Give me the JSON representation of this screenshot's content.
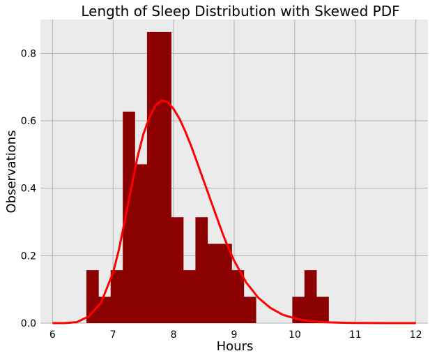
{
  "chart_data": {
    "type": "histogram",
    "title": "Length of Sleep Distribution with Skewed PDF",
    "xlabel": "Hours",
    "ylabel": "Observations",
    "xlim": [
      5.8,
      12.2
    ],
    "ylim": [
      0,
      0.9
    ],
    "xticks": [
      6,
      7,
      8,
      9,
      10,
      11,
      12
    ],
    "yticks": [
      0.0,
      0.2,
      0.4,
      0.6,
      0.8
    ],
    "grid": true,
    "background_color": "#ebebeb",
    "bar_color": "#8b0000",
    "curve_color": "#ff0000",
    "bins": [
      {
        "x0": 6.56,
        "x1": 6.76,
        "value": 0.157
      },
      {
        "x0": 6.76,
        "x1": 6.96,
        "value": 0.078
      },
      {
        "x0": 6.96,
        "x1": 7.16,
        "value": 0.157
      },
      {
        "x0": 7.16,
        "x1": 7.36,
        "value": 0.627
      },
      {
        "x0": 7.36,
        "x1": 7.56,
        "value": 0.471
      },
      {
        "x0": 7.56,
        "x1": 7.76,
        "value": 0.863
      },
      {
        "x0": 7.76,
        "x1": 7.96,
        "value": 0.863
      },
      {
        "x0": 7.96,
        "x1": 8.16,
        "value": 0.314
      },
      {
        "x0": 8.16,
        "x1": 8.36,
        "value": 0.157
      },
      {
        "x0": 8.36,
        "x1": 8.56,
        "value": 0.314
      },
      {
        "x0": 8.56,
        "x1": 8.76,
        "value": 0.235
      },
      {
        "x0": 8.76,
        "x1": 8.96,
        "value": 0.235
      },
      {
        "x0": 8.96,
        "x1": 9.16,
        "value": 0.157
      },
      {
        "x0": 9.16,
        "x1": 9.36,
        "value": 0.078
      },
      {
        "x0": 9.36,
        "x1": 9.56,
        "value": 0.0
      },
      {
        "x0": 9.56,
        "x1": 9.76,
        "value": 0.0
      },
      {
        "x0": 9.76,
        "x1": 9.96,
        "value": 0.0
      },
      {
        "x0": 9.96,
        "x1": 10.16,
        "value": 0.078
      },
      {
        "x0": 10.16,
        "x1": 10.36,
        "value": 0.157
      },
      {
        "x0": 10.36,
        "x1": 10.56,
        "value": 0.078
      }
    ],
    "pdf_curve": {
      "x": [
        6.0,
        6.2,
        6.4,
        6.6,
        6.8,
        7.0,
        7.1,
        7.2,
        7.3,
        7.4,
        7.5,
        7.6,
        7.7,
        7.8,
        7.9,
        8.0,
        8.1,
        8.2,
        8.3,
        8.4,
        8.5,
        8.6,
        8.7,
        8.8,
        8.9,
        9.0,
        9.2,
        9.4,
        9.6,
        9.8,
        10.0,
        10.2,
        10.4,
        10.6,
        10.8,
        11.0,
        11.5,
        12.0
      ],
      "y": [
        0.0,
        0.0,
        0.003,
        0.02,
        0.06,
        0.15,
        0.22,
        0.31,
        0.4,
        0.49,
        0.56,
        0.61,
        0.645,
        0.66,
        0.655,
        0.635,
        0.605,
        0.565,
        0.52,
        0.47,
        0.42,
        0.37,
        0.32,
        0.27,
        0.225,
        0.185,
        0.12,
        0.075,
        0.045,
        0.025,
        0.014,
        0.007,
        0.004,
        0.002,
        0.001,
        0.0005,
        0.0,
        0.0
      ]
    }
  }
}
